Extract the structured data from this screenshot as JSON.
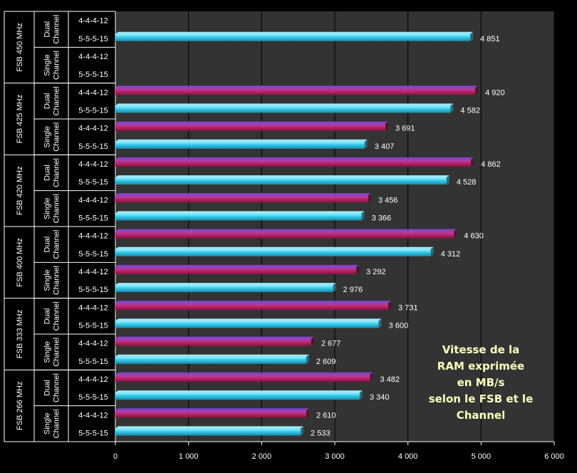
{
  "chart_data": {
    "type": "bar",
    "orientation": "horizontal",
    "x_ticks": [
      "0",
      "1 000",
      "2 000",
      "3 000",
      "4 000",
      "5 000",
      "6 000"
    ],
    "xlim": [
      0,
      6000
    ],
    "grid": true,
    "groups": [
      {
        "fsb": "FSB 450 MHz",
        "channels": [
          {
            "channel": [
              "Dual",
              "Channel"
            ],
            "rows": [
              {
                "timing": "4-4-4-12",
                "value": null,
                "label": ""
              },
              {
                "timing": "5-5-5-15",
                "value": 4851,
                "label": "4 851"
              }
            ]
          },
          {
            "channel": [
              "Single",
              "Channel"
            ],
            "rows": [
              {
                "timing": "4-4-4-12",
                "value": null,
                "label": ""
              },
              {
                "timing": "5-5-5-15",
                "value": null,
                "label": ""
              }
            ]
          }
        ]
      },
      {
        "fsb": "FSB 425 MHz",
        "channels": [
          {
            "channel": [
              "Dual",
              "Channel"
            ],
            "rows": [
              {
                "timing": "4-4-4-12",
                "value": 4920,
                "label": "4 920"
              },
              {
                "timing": "5-5-5-15",
                "value": 4582,
                "label": "4 582"
              }
            ]
          },
          {
            "channel": [
              "Single",
              "Channel"
            ],
            "rows": [
              {
                "timing": "4-4-4-12",
                "value": 3691,
                "label": "3 691"
              },
              {
                "timing": "5-5-5-15",
                "value": 3407,
                "label": "3 407"
              }
            ]
          }
        ]
      },
      {
        "fsb": "FSB 420 MHz",
        "channels": [
          {
            "channel": [
              "Dual",
              "Channel"
            ],
            "rows": [
              {
                "timing": "4-4-4-12",
                "value": 4862,
                "label": "4 862"
              },
              {
                "timing": "5-5-5-15",
                "value": 4528,
                "label": "4 528"
              }
            ]
          },
          {
            "channel": [
              "Single",
              "Channel"
            ],
            "rows": [
              {
                "timing": "4-4-4-12",
                "value": 3456,
                "label": "3 456"
              },
              {
                "timing": "5-5-5-15",
                "value": 3366,
                "label": "3 366"
              }
            ]
          }
        ]
      },
      {
        "fsb": "FSB 400 MHz",
        "channels": [
          {
            "channel": [
              "Dual",
              "Channel"
            ],
            "rows": [
              {
                "timing": "4-4-4-12",
                "value": 4630,
                "label": "4 630"
              },
              {
                "timing": "5-5-5-15",
                "value": 4312,
                "label": "4 312"
              }
            ]
          },
          {
            "channel": [
              "Single",
              "Channel"
            ],
            "rows": [
              {
                "timing": "4-4-4-12",
                "value": 3292,
                "label": "3 292"
              },
              {
                "timing": "5-5-5-15",
                "value": 2976,
                "label": "2 976"
              }
            ]
          }
        ]
      },
      {
        "fsb": "FSB 333 MHz",
        "channels": [
          {
            "channel": [
              "Dual",
              "Channel"
            ],
            "rows": [
              {
                "timing": "4-4-4-12",
                "value": 3731,
                "label": "3 731"
              },
              {
                "timing": "5-5-5-15",
                "value": 3600,
                "label": "3 600"
              }
            ]
          },
          {
            "channel": [
              "Single",
              "Channel"
            ],
            "rows": [
              {
                "timing": "4-4-4-12",
                "value": 2677,
                "label": "2 677"
              },
              {
                "timing": "5-5-5-15",
                "value": 2609,
                "label": "2 609"
              }
            ]
          }
        ]
      },
      {
        "fsb": "FSB 266 MHz",
        "channels": [
          {
            "channel": [
              "Dual",
              "Channel"
            ],
            "rows": [
              {
                "timing": "4-4-4-12",
                "value": 3482,
                "label": "3 482"
              },
              {
                "timing": "5-5-5-15",
                "value": 3340,
                "label": "3 340"
              }
            ]
          },
          {
            "channel": [
              "Single",
              "Channel"
            ],
            "rows": [
              {
                "timing": "4-4-4-12",
                "value": 2610,
                "label": "2 610"
              },
              {
                "timing": "5-5-5-15",
                "value": 2533,
                "label": "2 533"
              }
            ]
          }
        ]
      }
    ],
    "annotation_lines": [
      "Vitesse de la",
      "RAM exprimée",
      "en MB/s",
      "selon le FSB et le",
      "Channel"
    ],
    "colors": {
      "background": "#000000",
      "plot_area": "#333333",
      "gridline": "#000000",
      "bar_4_4_4_12": "#cc2266",
      "bar_4_4_4_12_top": "#8844cc",
      "bar_5_5_5_15": "#33ccee",
      "bar_5_5_5_15_top": "#99eeff",
      "annotation_text": "#ffffc0"
    }
  }
}
